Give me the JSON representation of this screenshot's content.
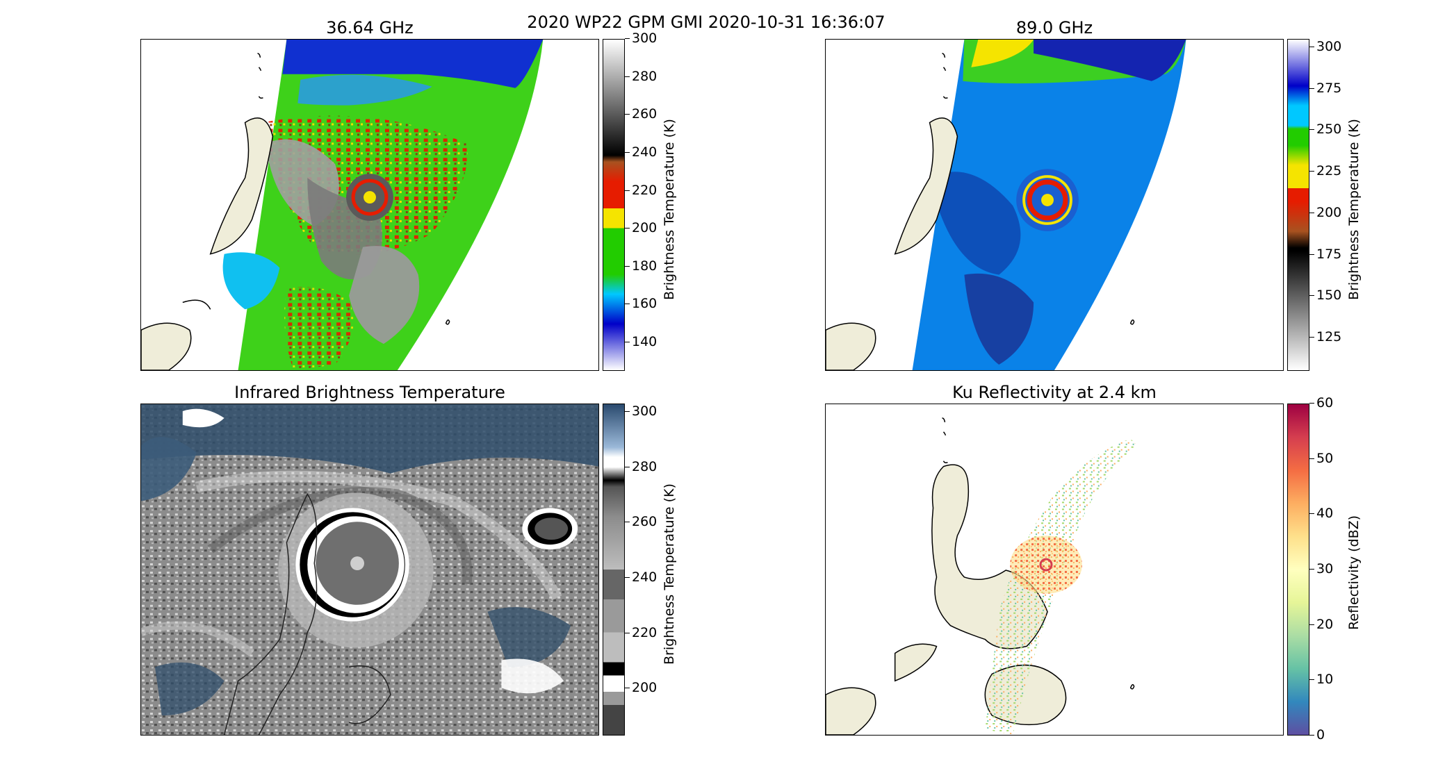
{
  "suptitle": "2020 WP22 GPM GMI 2020-10-31 16:36:07",
  "panels": {
    "p1": {
      "title": "36.64 GHz",
      "cbar_label": "Brightness Temperature (K)",
      "ticks": [
        "300",
        "280",
        "260",
        "240",
        "220",
        "200",
        "180",
        "160",
        "140"
      ]
    },
    "p2": {
      "title": "89.0 GHz",
      "cbar_label": "Brightness Temperature (K)",
      "ticks": [
        "300",
        "275",
        "250",
        "225",
        "200",
        "175",
        "150",
        "125"
      ]
    },
    "p3": {
      "title": "Infrared Brightness Temperature",
      "cbar_label": "Brightness Temperature (K)",
      "ticks": [
        "300",
        "280",
        "260",
        "240",
        "220",
        "200"
      ]
    },
    "p4": {
      "title": "Ku Reflectivity at 2.4 km",
      "cbar_label": "Reflectivity (dBZ)",
      "ticks": [
        "60",
        "50",
        "40",
        "30",
        "20",
        "10",
        "0"
      ]
    }
  },
  "chart_data": [
    {
      "type": "heatmap",
      "title": "36.64 GHz",
      "colorbar_label": "Brightness Temperature (K)",
      "colorbar_range": [
        125,
        300
      ],
      "colorbar_ticks": [
        300,
        280,
        260,
        240,
        220,
        200,
        180,
        160,
        140
      ],
      "colormap_stops": [
        "#ffffff at 125",
        "#0000c8 at 150",
        "#00c8ff at 165",
        "#22cc00 at 175",
        "#f5e400 at 200",
        "#e61c00 at 210",
        "#a85220 at 235",
        "#000000 at 240",
        "#ffffff at 300"
      ],
      "legend": "right"
    },
    {
      "type": "heatmap",
      "title": "89.0 GHz",
      "colorbar_label": "Brightness Temperature (K)",
      "colorbar_range": [
        105,
        305
      ],
      "colorbar_ticks": [
        300,
        275,
        250,
        225,
        200,
        175,
        150,
        125
      ],
      "colormap_stops": [
        "#ffffff at 105",
        "#000000 at 178",
        "#a85220 at 190",
        "#e61c00 at 215",
        "#f5e400 at 225",
        "#22cc00 at 240",
        "#00c8ff at 255",
        "#0000c8 at 275",
        "#ffffff at 305"
      ],
      "legend": "right"
    },
    {
      "type": "heatmap",
      "title": "Infrared Brightness Temperature",
      "colorbar_label": "Brightness Temperature (K)",
      "colorbar_range": [
        183,
        303
      ],
      "colorbar_ticks": [
        300,
        280,
        260,
        240,
        220,
        200
      ],
      "legend": "right"
    },
    {
      "type": "heatmap",
      "title": "Ku Reflectivity at 2.4 km",
      "colorbar_label": "Reflectivity (dBZ)",
      "colorbar_range": [
        0,
        60
      ],
      "colorbar_ticks": [
        60,
        50,
        40,
        30,
        20,
        10,
        0
      ],
      "colormap": "Spectral_r",
      "legend": "right"
    }
  ]
}
